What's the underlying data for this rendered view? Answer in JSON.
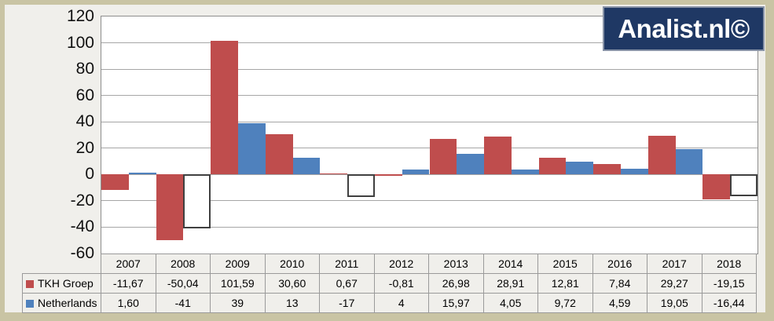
{
  "logo": {
    "text": "Analist.nl©"
  },
  "colors": {
    "tkh": "#bf4d4d",
    "netherlands": "#4f81bd",
    "negative_fill": "#ffffff",
    "negative_border": "#404040",
    "logo_bg": "#1f3864",
    "page_bg": "#f0efeb",
    "frame": "#c9c4a4",
    "gridline": "#a6a6a6"
  },
  "chart_data": {
    "type": "bar",
    "title": "",
    "xlabel": "",
    "ylabel": "",
    "ylim": [
      -60,
      120
    ],
    "ytick_step": 20,
    "grid": true,
    "legend_position": "table-left",
    "categories": [
      "2007",
      "2008",
      "2009",
      "2010",
      "2011",
      "2012",
      "2013",
      "2014",
      "2015",
      "2016",
      "2017",
      "2018"
    ],
    "series": [
      {
        "name": "TKH Groep",
        "color": "#bf4d4d",
        "negative_white": false,
        "values": [
          -11.67,
          -50.04,
          101.59,
          30.6,
          0.67,
          -0.81,
          26.98,
          28.91,
          12.81,
          7.84,
          29.27,
          -19.15
        ],
        "display": [
          "-11,67",
          "-50,04",
          "101,59",
          "30,60",
          "0,67",
          "-0,81",
          "26,98",
          "28,91",
          "12,81",
          "7,84",
          "29,27",
          "-19,15"
        ]
      },
      {
        "name": "Netherlands",
        "color": "#4f81bd",
        "negative_white": true,
        "values": [
          1.6,
          -41,
          39,
          13,
          -17,
          4,
          15.97,
          4.05,
          9.72,
          4.59,
          19.05,
          -16.44
        ],
        "display": [
          "1,60",
          "-41",
          "39",
          "13",
          "-17",
          "4",
          "15,97",
          "4,05",
          "9,72",
          "4,59",
          "19,05",
          "-16,44"
        ]
      }
    ],
    "y_tick_labels": [
      "120",
      "100",
      "80",
      "60",
      "40",
      "20",
      "0",
      "-20",
      "-40",
      "-60"
    ]
  }
}
